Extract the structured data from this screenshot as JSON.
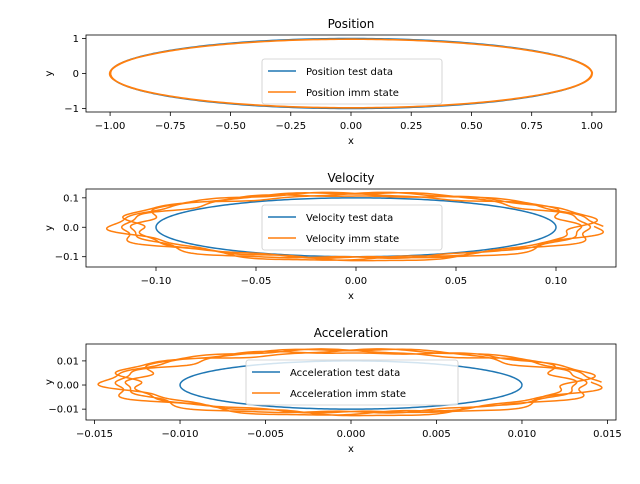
{
  "colors": {
    "test": "#1f77b4",
    "imm": "#ff7f0e"
  },
  "chart_data": [
    {
      "type": "line",
      "title": "Position",
      "xlabel": "x",
      "ylabel": "y",
      "xlim": [
        -1.1,
        1.1
      ],
      "ylim": [
        -1.1,
        1.1
      ],
      "xticks": [
        -1.0,
        -0.75,
        -0.5,
        -0.25,
        0.0,
        0.25,
        0.5,
        0.75,
        1.0
      ],
      "xtick_labels": [
        "−1.00",
        "−0.75",
        "−0.50",
        "−0.25",
        "0.00",
        "0.25",
        "0.50",
        "0.75",
        "1.00"
      ],
      "yticks": [
        -1,
        0,
        1
      ],
      "ytick_labels": [
        "−1",
        "0",
        "1"
      ],
      "legend_placement": "lower center",
      "series": [
        {
          "name": "Position test data",
          "shape": "ellipse",
          "rx": 1.0,
          "ry": 1.0,
          "cx": 0.0,
          "cy": 0.0,
          "noise": 0.0
        },
        {
          "name": "Position imm state",
          "shape": "ellipse",
          "rx": 1.0,
          "ry": 0.98,
          "cx": 0.0,
          "cy": 0.0,
          "noise": 0.003
        }
      ]
    },
    {
      "type": "line",
      "title": "Velocity",
      "xlabel": "x",
      "ylabel": "y",
      "xlim": [
        -0.135,
        0.13
      ],
      "ylim": [
        -0.135,
        0.13
      ],
      "xticks": [
        -0.1,
        -0.05,
        0.0,
        0.05,
        0.1
      ],
      "xtick_labels": [
        "−0.10",
        "−0.05",
        "0.00",
        "0.05",
        "0.10"
      ],
      "yticks": [
        -0.1,
        0.0,
        0.1
      ],
      "ytick_labels": [
        "−0.1",
        "0.0",
        "0.1"
      ],
      "legend_placement": "center",
      "series": [
        {
          "name": "Velocity test data",
          "shape": "ellipse",
          "rx": 0.1,
          "ry": 0.1,
          "cx": 0.0,
          "cy": 0.0,
          "noise": 0.0
        },
        {
          "name": "Velocity imm state",
          "shape": "ellipse",
          "rx": 0.115,
          "ry": 0.11,
          "cx": 0.0,
          "cy": 0.003,
          "noise": 0.012
        }
      ]
    },
    {
      "type": "line",
      "title": "Acceleration",
      "xlabel": "x",
      "ylabel": "y",
      "xlim": [
        -0.0155,
        0.0155
      ],
      "ylim": [
        -0.0145,
        0.017
      ],
      "xticks": [
        -0.015,
        -0.01,
        -0.005,
        0.0,
        0.005,
        0.01,
        0.015
      ],
      "xtick_labels": [
        "−0.015",
        "−0.010",
        "−0.005",
        "0.000",
        "0.005",
        "0.010",
        "0.015"
      ],
      "yticks": [
        -0.01,
        0.0,
        0.01
      ],
      "ytick_labels": [
        "−0.01",
        "0.00",
        "0.01"
      ],
      "legend_placement": "center",
      "series": [
        {
          "name": "Acceleration test data",
          "shape": "ellipse",
          "rx": 0.01,
          "ry": 0.01,
          "cx": 0.0,
          "cy": 0.0,
          "noise": 0.0
        },
        {
          "name": "Acceleration imm state",
          "shape": "ellipse",
          "rx": 0.0135,
          "ry": 0.013,
          "cx": 0.0,
          "cy": 0.0012,
          "noise": 0.0016
        }
      ]
    }
  ]
}
